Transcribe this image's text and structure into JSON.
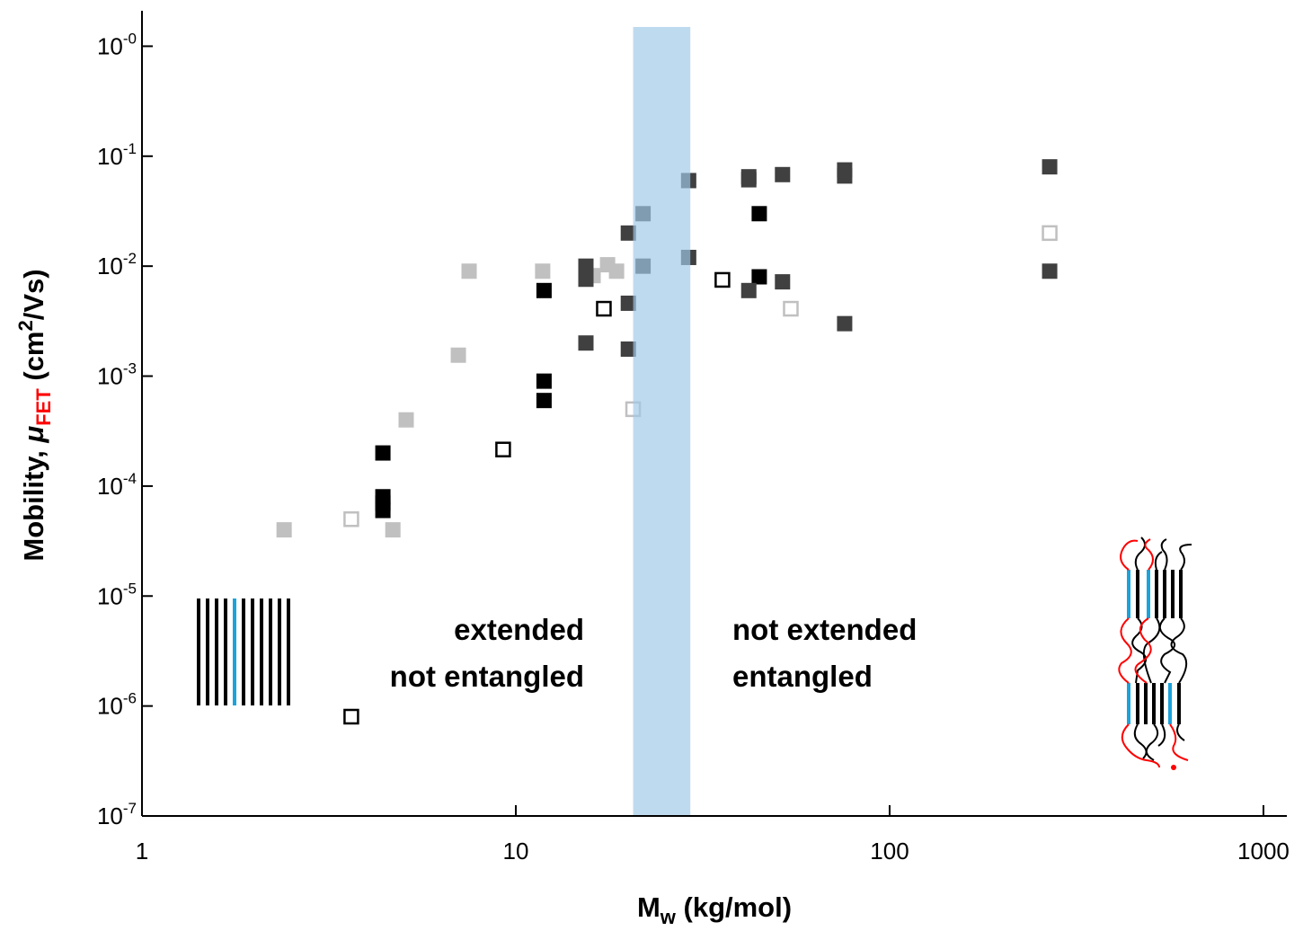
{
  "chart_data": {
    "type": "scatter",
    "xlabel": [
      "M",
      "w",
      " (kg/mol)"
    ],
    "ylabel": [
      "Mobility, ",
      "μ",
      "FET",
      " (cm",
      "2",
      "/Vs)"
    ],
    "xscale": "log",
    "yscale": "log",
    "xlim": [
      1,
      1155
    ],
    "ylim": [
      1e-07,
      2.1
    ],
    "xticks": [
      1,
      10,
      100,
      1000
    ],
    "yticks": [
      {
        "value": 1,
        "label": "10",
        "sup": "-0"
      },
      {
        "value": 0.1,
        "label": "10",
        "sup": "-1"
      },
      {
        "value": 0.01,
        "label": "10",
        "sup": "-2"
      },
      {
        "value": 0.001,
        "label": "10",
        "sup": "-3"
      },
      {
        "value": 0.0001,
        "label": "10",
        "sup": "-4"
      },
      {
        "value": 1e-05,
        "label": "10",
        "sup": "-5"
      },
      {
        "value": 1e-06,
        "label": "10",
        "sup": "-6"
      },
      {
        "value": 1e-07,
        "label": "10",
        "sup": "-7"
      }
    ],
    "shaded_region": {
      "xlim": [
        20.6,
        29.3
      ],
      "color": "#9fc8e8"
    },
    "annotations": [
      {
        "text": "extended",
        "color": "#ff0000"
      },
      {
        "text": "not entangled",
        "color": "#ff0000"
      },
      {
        "text": "not extended",
        "color": "#000090"
      },
      {
        "text": "entangled",
        "color": "#000090"
      }
    ],
    "series": [
      {
        "color": "#c0c0c0",
        "filled": true,
        "x": [
          2.4,
          4.69,
          5.09,
          7.02,
          7.5,
          11.8,
          16.1,
          17.6,
          18.6
        ],
        "values": [
          4e-05,
          4e-05,
          0.0004,
          0.00155,
          0.009,
          0.009,
          0.0082,
          0.0103,
          0.009
        ]
      },
      {
        "color": "#000000",
        "filled": true,
        "x": [
          4.41,
          4.41,
          4.41,
          4.41,
          11.9,
          11.9,
          11.9,
          44.8,
          44.8
        ],
        "values": [
          0.0002,
          8e-05,
          7e-05,
          6e-05,
          0.006,
          0.0009,
          0.0006,
          0.03,
          0.008
        ]
      },
      {
        "color": "#404040",
        "filled": true,
        "x": [
          15.4,
          15.4,
          15.4,
          20.0,
          20.0,
          20.0,
          21.9,
          21.9,
          29.0,
          29.0,
          42,
          42,
          42,
          51.7,
          51.7,
          75.8,
          75.8,
          75.8,
          268,
          268
        ],
        "values": [
          0.01,
          0.0076,
          0.002,
          0.02,
          0.0046,
          0.00176,
          0.03,
          0.01,
          0.06,
          0.012,
          0.065,
          0.061,
          0.006,
          0.068,
          0.0072,
          0.075,
          0.066,
          0.003,
          0.08,
          0.009
        ]
      },
      {
        "color": "#000000",
        "filled": false,
        "x": [
          3.63,
          9.25,
          17.2,
          35.7
        ],
        "values": [
          8e-07,
          0.000215,
          0.0041,
          0.0075
        ]
      },
      {
        "color": "#c0c0c0",
        "filled": false,
        "x": [
          3.63,
          20.6,
          54.4,
          268
        ],
        "values": [
          5e-05,
          0.0005,
          0.0041,
          0.02
        ]
      }
    ]
  }
}
